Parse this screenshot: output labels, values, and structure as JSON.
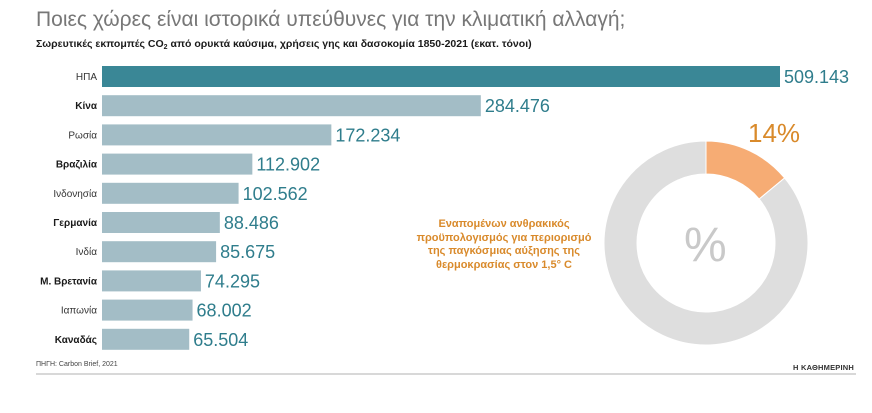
{
  "title": "Ποιες χώρες είναι ιστορικά υπεύθυνες για την κλιματική αλλαγή;",
  "subtitle": {
    "before": "Σωρευτικές εκπομπές CO",
    "sub": "2",
    "after": " από ορυκτά καύσιμα, χρήσεις γης και δασοκομία 1850-2021 (εκατ. τόνοι)"
  },
  "colors": {
    "highlight_bar": "#3a8796",
    "bar": "#a3bdc6",
    "value_text": "#2f7d8c",
    "donut_used": "#f6ac74",
    "donut_rest": "#dedede",
    "accent_text": "#d98a2b"
  },
  "chart_data": [
    {
      "type": "bar",
      "orientation": "horizontal",
      "title": "Σωρευτικές εκπομπές CO2 από ορυκτά καύσιμα, χρήσεις γης και δασοκομία 1850-2021 (εκατ. τόνοι)",
      "categories": [
        "ΗΠΑ",
        "Κίνα",
        "Ρωσία",
        "Βραζιλία",
        "Ινδονησία",
        "Γερμανία",
        "Ινδία",
        "Μ. Βρετανία",
        "Ιαπωνία",
        "Καναδάς"
      ],
      "bold_categories": [
        "Κίνα",
        "Βραζιλία",
        "Γερμανία",
        "Μ. Βρετανία",
        "Καναδάς"
      ],
      "highlight_category": "ΗΠΑ",
      "values": [
        509143,
        284476,
        172234,
        112902,
        102562,
        88486,
        85675,
        74295,
        68002,
        65504
      ],
      "value_labels": [
        "509.143",
        "284.476",
        "172.234",
        "112.902",
        "102.562",
        "88.486",
        "85.675",
        "74.295",
        "68.002",
        "65.504"
      ],
      "xlim": [
        0,
        509143
      ],
      "grid": false
    },
    {
      "type": "pie",
      "style": "donut",
      "values": [
        14,
        86
      ],
      "value_label": "14%",
      "center_symbol": "%",
      "annotation": "Εναπομένων ανθρακικός προϋπολογισμός για περιορισμό της παγκόσμιας αύξησης της θερμοκρασίας στον 1,5° C"
    }
  ],
  "source": "ΠΗΓΗ: Carbon Brief, 2021",
  "brand": "Η ΚΑΘΗΜΕΡΙΝΗ"
}
